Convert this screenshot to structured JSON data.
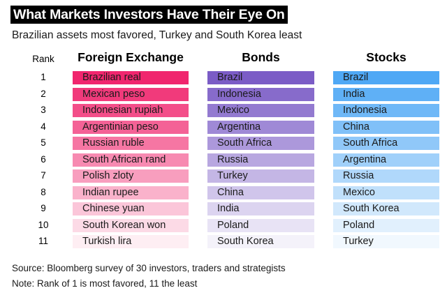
{
  "title": "What Markets Investors Have Their Eye On",
  "subtitle": "Brazilian assets most favored, Turkey and South Korea least",
  "rank_header": "Rank",
  "chart_data": {
    "type": "table",
    "columns": [
      "Foreign Exchange",
      "Bonds",
      "Stocks"
    ],
    "ranks": [
      "1",
      "2",
      "3",
      "4",
      "5",
      "6",
      "7",
      "8",
      "9",
      "10",
      "11"
    ],
    "rows": {
      "Foreign Exchange": [
        "Brazilian real",
        "Mexican peso",
        "Indonesian rupiah",
        "Argentinian peso",
        "Russian ruble",
        "South African rand",
        "Polish zloty",
        "Indian rupee",
        "Chinese yuan",
        "South Korean won",
        "Turkish lira"
      ],
      "Bonds": [
        "Brazil",
        "Indonesia",
        "Mexico",
        "Argentina",
        "South Africa",
        "Russia",
        "Turkey",
        "China",
        "India",
        "Poland",
        "South Korea"
      ],
      "Stocks": [
        "Brazil",
        "India",
        "Indonesia",
        "China",
        "South Africa",
        "Argentina",
        "Russia",
        "Mexico",
        "South Korea",
        "Poland",
        "Turkey"
      ]
    },
    "colors": {
      "Foreign Exchange": "#f0266e",
      "Bonds": "#7b5cc6",
      "Stocks": "#4fa8f5"
    }
  },
  "source": "Source: Bloomberg survey of 30 investors, traders and strategists",
  "note": "Note: Rank of 1 is most favored, 11 the least"
}
